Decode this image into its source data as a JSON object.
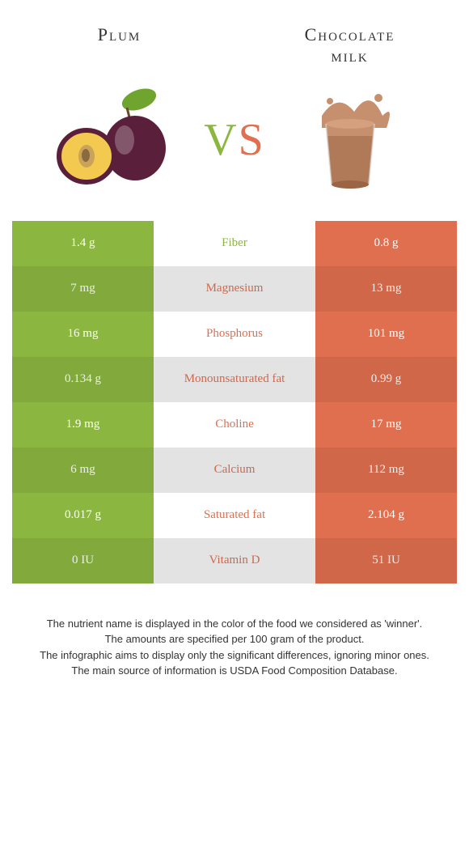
{
  "colors": {
    "plum": "#8bb63f",
    "milk": "#e06f4f",
    "mid_plain": "#ffffff",
    "mid_alt": "#f4f4f4"
  },
  "header": {
    "left": "Plum",
    "right_line1": "Chocolate",
    "right_line2": "milk"
  },
  "vs": {
    "v": "V",
    "s": "S"
  },
  "rows": [
    {
      "left": "1.4 g",
      "label": "Fiber",
      "right": "0.8 g",
      "winner": "plum"
    },
    {
      "left": "7 mg",
      "label": "Magnesium",
      "right": "13 mg",
      "winner": "milk"
    },
    {
      "left": "16 mg",
      "label": "Phosphorus",
      "right": "101 mg",
      "winner": "milk"
    },
    {
      "left": "0.134 g",
      "label": "Monounsaturated fat",
      "right": "0.99 g",
      "winner": "milk"
    },
    {
      "left": "1.9 mg",
      "label": "Choline",
      "right": "17 mg",
      "winner": "milk"
    },
    {
      "left": "6 mg",
      "label": "Calcium",
      "right": "112 mg",
      "winner": "milk"
    },
    {
      "left": "0.017 g",
      "label": "Saturated fat",
      "right": "2.104 g",
      "winner": "milk"
    },
    {
      "left": "0 IU",
      "label": "Vitamin D",
      "right": "51 IU",
      "winner": "milk"
    }
  ],
  "footer": {
    "line1": "The nutrient name is displayed in the color of the food we considered as 'winner'.",
    "line2": "The amounts are specified per 100 gram of the product.",
    "line3": "The infographic aims to display only the significant differences, ignoring minor ones.",
    "line4": "The main source of information is USDA Food Composition Database."
  }
}
